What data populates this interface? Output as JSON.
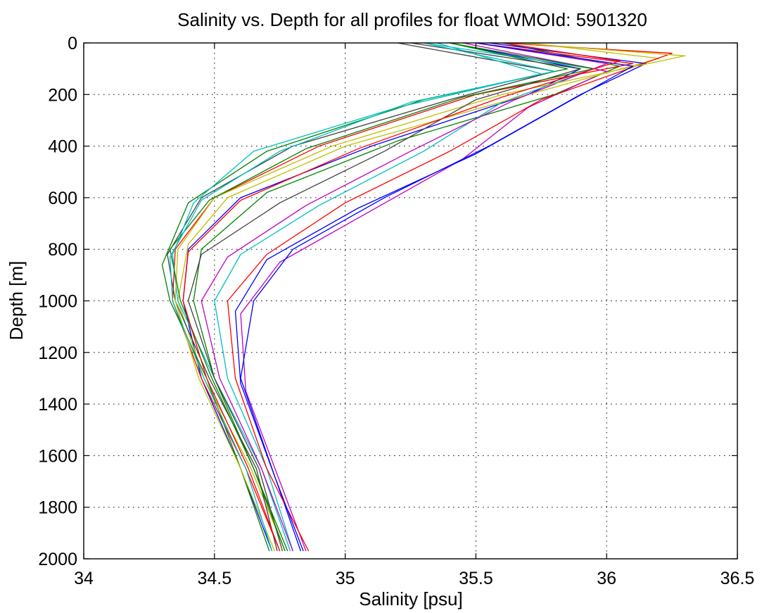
{
  "chart_data": {
    "type": "line",
    "title": "Salinity vs. Depth for all profiles for float WMOId: 5901320",
    "xlabel": "Salinity [psu]",
    "ylabel": "Depth [m]",
    "xlim": [
      34,
      36.5
    ],
    "ylim": [
      0,
      2000
    ],
    "y_reversed": true,
    "grid": true,
    "x_ticks": [
      34,
      34.5,
      35,
      35.5,
      36,
      36.5
    ],
    "x_tick_labels": [
      "34",
      "34.5",
      "35",
      "35.5",
      "36",
      "36.5"
    ],
    "y_ticks": [
      0,
      200,
      400,
      600,
      800,
      1000,
      1200,
      1400,
      1600,
      1800,
      2000
    ],
    "y_tick_labels": [
      "0",
      "200",
      "400",
      "600",
      "800",
      "1000",
      "1200",
      "1400",
      "1600",
      "1800",
      "2000"
    ],
    "series_colors": [
      "#0000ff",
      "#008000",
      "#ff0000",
      "#00bfbf",
      "#bf00bf",
      "#bfbf00",
      "#404040"
    ],
    "series": [
      {
        "x": [
          35.4,
          35.9,
          35.7,
          35.1,
          34.6,
          34.4,
          34.38,
          34.45,
          34.6,
          34.72
        ],
        "y": [
          0,
          100,
          200,
          400,
          600,
          800,
          1000,
          1300,
          1650,
          1970
        ]
      },
      {
        "x": [
          35.6,
          36.05,
          35.8,
          35.2,
          34.7,
          34.45,
          34.42,
          34.5,
          34.65,
          34.78
        ],
        "y": [
          0,
          90,
          200,
          380,
          580,
          800,
          1000,
          1300,
          1650,
          1970
        ]
      },
      {
        "x": [
          35.5,
          36.1,
          35.5,
          34.9,
          34.5,
          34.35,
          34.34,
          34.45,
          34.62,
          34.75
        ],
        "y": [
          0,
          80,
          200,
          400,
          600,
          800,
          1000,
          1300,
          1650,
          1970
        ]
      },
      {
        "x": [
          35.3,
          35.95,
          35.6,
          35.3,
          34.9,
          34.6,
          34.5,
          34.55,
          34.7,
          34.8
        ],
        "y": [
          0,
          100,
          230,
          420,
          630,
          820,
          1000,
          1300,
          1650,
          1970
        ]
      },
      {
        "x": [
          35.45,
          36.0,
          35.7,
          35.45,
          35.1,
          34.75,
          34.6,
          34.62,
          34.75,
          34.85
        ],
        "y": [
          0,
          110,
          250,
          450,
          650,
          850,
          1050,
          1350,
          1700,
          1970
        ]
      },
      {
        "x": [
          35.7,
          36.2,
          35.7,
          35.0,
          34.55,
          34.4,
          34.36,
          34.46,
          34.64,
          34.77
        ],
        "y": [
          0,
          60,
          200,
          400,
          600,
          780,
          1000,
          1300,
          1650,
          1970
        ]
      },
      {
        "x": [
          35.2,
          35.8,
          35.4,
          34.8,
          34.45,
          34.32,
          34.35,
          34.48,
          34.66,
          34.74
        ],
        "y": [
          0,
          110,
          220,
          400,
          600,
          820,
          1000,
          1300,
          1650,
          1970
        ]
      },
      {
        "x": [
          35.55,
          36.15,
          35.9,
          35.55,
          35.15,
          34.8,
          34.65,
          34.6,
          34.72,
          34.83
        ],
        "y": [
          0,
          80,
          200,
          400,
          600,
          800,
          1000,
          1300,
          1650,
          1970
        ]
      },
      {
        "x": [
          35.4,
          35.85,
          35.3,
          34.7,
          34.4,
          34.3,
          34.33,
          34.47,
          34.6,
          34.71
        ],
        "y": [
          0,
          100,
          220,
          420,
          620,
          860,
          1000,
          1300,
          1650,
          1970
        ]
      },
      {
        "x": [
          35.6,
          36.25,
          35.75,
          35.4,
          35.0,
          34.7,
          34.55,
          34.58,
          34.7,
          34.86
        ],
        "y": [
          0,
          40,
          220,
          420,
          620,
          820,
          1000,
          1300,
          1650,
          1970
        ]
      },
      {
        "x": [
          35.35,
          35.75,
          35.2,
          34.65,
          34.42,
          34.34,
          34.36,
          34.5,
          34.68,
          34.79
        ],
        "y": [
          0,
          120,
          250,
          420,
          620,
          820,
          1000,
          1300,
          1650,
          1970
        ]
      },
      {
        "x": [
          35.5,
          36.0,
          35.65,
          35.25,
          34.85,
          34.55,
          34.45,
          34.52,
          34.68,
          34.8
        ],
        "y": [
          0,
          80,
          220,
          420,
          630,
          830,
          1000,
          1300,
          1650,
          1970
        ]
      },
      {
        "x": [
          35.65,
          36.3,
          35.6,
          34.95,
          34.5,
          34.36,
          34.35,
          34.44,
          34.6,
          34.73
        ],
        "y": [
          0,
          50,
          200,
          400,
          600,
          800,
          1000,
          1300,
          1650,
          1970
        ]
      },
      {
        "x": [
          35.25,
          35.9,
          35.5,
          35.15,
          34.75,
          34.45,
          34.4,
          34.5,
          34.67,
          34.76
        ],
        "y": [
          0,
          100,
          220,
          420,
          620,
          820,
          1000,
          1300,
          1650,
          1970
        ]
      },
      {
        "x": [
          35.5,
          36.1,
          35.85,
          35.5,
          35.05,
          34.7,
          34.58,
          34.6,
          34.73,
          34.84
        ],
        "y": [
          0,
          90,
          230,
          430,
          640,
          840,
          1040,
          1320,
          1680,
          1970
        ]
      },
      {
        "x": [
          35.4,
          35.95,
          35.45,
          34.85,
          34.48,
          34.33,
          34.37,
          34.49,
          34.65,
          34.77
        ],
        "y": [
          0,
          100,
          210,
          410,
          610,
          800,
          1000,
          1300,
          1650,
          1970
        ]
      },
      {
        "x": [
          35.6,
          36.05,
          35.6,
          35.05,
          34.6,
          34.4,
          34.38,
          34.47,
          34.63,
          34.75
        ],
        "y": [
          0,
          70,
          210,
          410,
          610,
          810,
          1000,
          1300,
          1650,
          1970
        ]
      },
      {
        "x": [
          35.3,
          35.8,
          35.25,
          34.75,
          34.45,
          34.33,
          34.34,
          34.46,
          34.62,
          34.72
        ],
        "y": [
          0,
          110,
          230,
          420,
          610,
          830,
          1000,
          1300,
          1650,
          1970
        ]
      }
    ]
  }
}
